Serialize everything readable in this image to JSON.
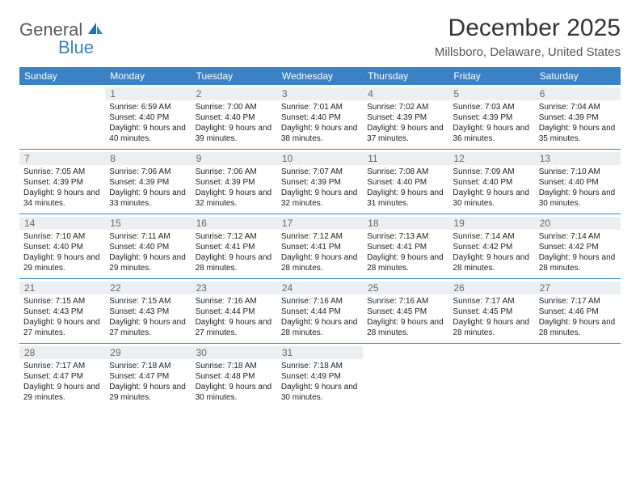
{
  "brand": {
    "name1": "General",
    "name2": "Blue"
  },
  "title": "December 2025",
  "location": "Millsboro, Delaware, United States",
  "colors": {
    "header_bg": "#3b82c4",
    "header_text": "#ffffff",
    "rule": "#3b82c4",
    "daynum_bg": "#eceff1"
  },
  "dayNames": [
    "Sunday",
    "Monday",
    "Tuesday",
    "Wednesday",
    "Thursday",
    "Friday",
    "Saturday"
  ],
  "weeks": [
    [
      null,
      {
        "n": "1",
        "sr": "Sunrise: 6:59 AM",
        "ss": "Sunset: 4:40 PM",
        "dl": "Daylight: 9 hours and 40 minutes."
      },
      {
        "n": "2",
        "sr": "Sunrise: 7:00 AM",
        "ss": "Sunset: 4:40 PM",
        "dl": "Daylight: 9 hours and 39 minutes."
      },
      {
        "n": "3",
        "sr": "Sunrise: 7:01 AM",
        "ss": "Sunset: 4:40 PM",
        "dl": "Daylight: 9 hours and 38 minutes."
      },
      {
        "n": "4",
        "sr": "Sunrise: 7:02 AM",
        "ss": "Sunset: 4:39 PM",
        "dl": "Daylight: 9 hours and 37 minutes."
      },
      {
        "n": "5",
        "sr": "Sunrise: 7:03 AM",
        "ss": "Sunset: 4:39 PM",
        "dl": "Daylight: 9 hours and 36 minutes."
      },
      {
        "n": "6",
        "sr": "Sunrise: 7:04 AM",
        "ss": "Sunset: 4:39 PM",
        "dl": "Daylight: 9 hours and 35 minutes."
      }
    ],
    [
      {
        "n": "7",
        "sr": "Sunrise: 7:05 AM",
        "ss": "Sunset: 4:39 PM",
        "dl": "Daylight: 9 hours and 34 minutes."
      },
      {
        "n": "8",
        "sr": "Sunrise: 7:06 AM",
        "ss": "Sunset: 4:39 PM",
        "dl": "Daylight: 9 hours and 33 minutes."
      },
      {
        "n": "9",
        "sr": "Sunrise: 7:06 AM",
        "ss": "Sunset: 4:39 PM",
        "dl": "Daylight: 9 hours and 32 minutes."
      },
      {
        "n": "10",
        "sr": "Sunrise: 7:07 AM",
        "ss": "Sunset: 4:39 PM",
        "dl": "Daylight: 9 hours and 32 minutes."
      },
      {
        "n": "11",
        "sr": "Sunrise: 7:08 AM",
        "ss": "Sunset: 4:40 PM",
        "dl": "Daylight: 9 hours and 31 minutes."
      },
      {
        "n": "12",
        "sr": "Sunrise: 7:09 AM",
        "ss": "Sunset: 4:40 PM",
        "dl": "Daylight: 9 hours and 30 minutes."
      },
      {
        "n": "13",
        "sr": "Sunrise: 7:10 AM",
        "ss": "Sunset: 4:40 PM",
        "dl": "Daylight: 9 hours and 30 minutes."
      }
    ],
    [
      {
        "n": "14",
        "sr": "Sunrise: 7:10 AM",
        "ss": "Sunset: 4:40 PM",
        "dl": "Daylight: 9 hours and 29 minutes."
      },
      {
        "n": "15",
        "sr": "Sunrise: 7:11 AM",
        "ss": "Sunset: 4:40 PM",
        "dl": "Daylight: 9 hours and 29 minutes."
      },
      {
        "n": "16",
        "sr": "Sunrise: 7:12 AM",
        "ss": "Sunset: 4:41 PM",
        "dl": "Daylight: 9 hours and 28 minutes."
      },
      {
        "n": "17",
        "sr": "Sunrise: 7:12 AM",
        "ss": "Sunset: 4:41 PM",
        "dl": "Daylight: 9 hours and 28 minutes."
      },
      {
        "n": "18",
        "sr": "Sunrise: 7:13 AM",
        "ss": "Sunset: 4:41 PM",
        "dl": "Daylight: 9 hours and 28 minutes."
      },
      {
        "n": "19",
        "sr": "Sunrise: 7:14 AM",
        "ss": "Sunset: 4:42 PM",
        "dl": "Daylight: 9 hours and 28 minutes."
      },
      {
        "n": "20",
        "sr": "Sunrise: 7:14 AM",
        "ss": "Sunset: 4:42 PM",
        "dl": "Daylight: 9 hours and 28 minutes."
      }
    ],
    [
      {
        "n": "21",
        "sr": "Sunrise: 7:15 AM",
        "ss": "Sunset: 4:43 PM",
        "dl": "Daylight: 9 hours and 27 minutes."
      },
      {
        "n": "22",
        "sr": "Sunrise: 7:15 AM",
        "ss": "Sunset: 4:43 PM",
        "dl": "Daylight: 9 hours and 27 minutes."
      },
      {
        "n": "23",
        "sr": "Sunrise: 7:16 AM",
        "ss": "Sunset: 4:44 PM",
        "dl": "Daylight: 9 hours and 27 minutes."
      },
      {
        "n": "24",
        "sr": "Sunrise: 7:16 AM",
        "ss": "Sunset: 4:44 PM",
        "dl": "Daylight: 9 hours and 28 minutes."
      },
      {
        "n": "25",
        "sr": "Sunrise: 7:16 AM",
        "ss": "Sunset: 4:45 PM",
        "dl": "Daylight: 9 hours and 28 minutes."
      },
      {
        "n": "26",
        "sr": "Sunrise: 7:17 AM",
        "ss": "Sunset: 4:45 PM",
        "dl": "Daylight: 9 hours and 28 minutes."
      },
      {
        "n": "27",
        "sr": "Sunrise: 7:17 AM",
        "ss": "Sunset: 4:46 PM",
        "dl": "Daylight: 9 hours and 28 minutes."
      }
    ],
    [
      {
        "n": "28",
        "sr": "Sunrise: 7:17 AM",
        "ss": "Sunset: 4:47 PM",
        "dl": "Daylight: 9 hours and 29 minutes."
      },
      {
        "n": "29",
        "sr": "Sunrise: 7:18 AM",
        "ss": "Sunset: 4:47 PM",
        "dl": "Daylight: 9 hours and 29 minutes."
      },
      {
        "n": "30",
        "sr": "Sunrise: 7:18 AM",
        "ss": "Sunset: 4:48 PM",
        "dl": "Daylight: 9 hours and 30 minutes."
      },
      {
        "n": "31",
        "sr": "Sunrise: 7:18 AM",
        "ss": "Sunset: 4:49 PM",
        "dl": "Daylight: 9 hours and 30 minutes."
      },
      null,
      null,
      null
    ]
  ]
}
